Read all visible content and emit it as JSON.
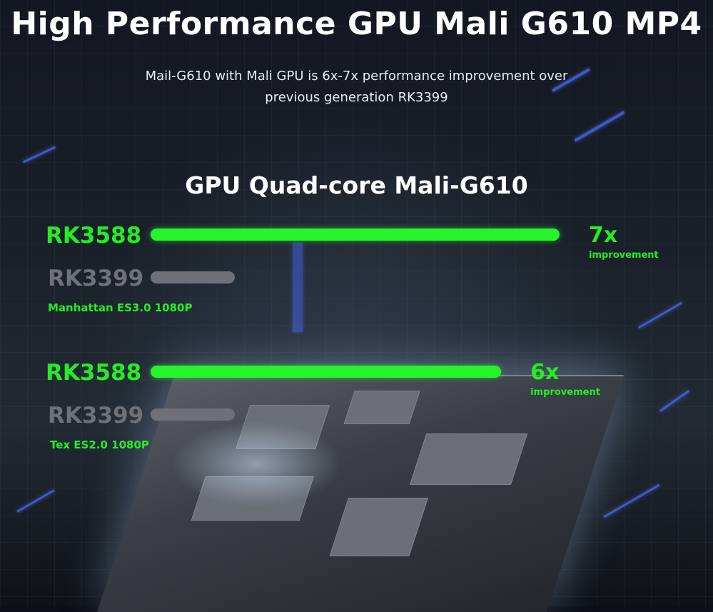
{
  "header": {
    "title": "High Performance GPU Mali G610 MP4",
    "subtitle_line1": "Mail-G610 with Mali GPU is 6x-7x performance improvement over",
    "subtitle_line2": "previous generation RK3399"
  },
  "chart_data": {
    "type": "bar",
    "title": "GPU Quad-core Mali-G610",
    "groups": [
      {
        "benchmark": "Manhattan ES3.0 1080P",
        "multiplier": "7x",
        "multiplier_note": "improvement",
        "bars": [
          {
            "name": "RK3588",
            "value": 7,
            "color": "#27f32d"
          },
          {
            "name": "RK3399",
            "value": 1,
            "color": "#6e7178"
          }
        ]
      },
      {
        "benchmark": "Tex ES2.0 1080P",
        "multiplier": "6x",
        "multiplier_note": "improvement",
        "bars": [
          {
            "name": "RK3588",
            "value": 6,
            "color": "#27f32d"
          },
          {
            "name": "RK3399",
            "value": 1,
            "color": "#6e7178"
          }
        ]
      }
    ],
    "xlabel": "",
    "ylabel": "",
    "legend": "none",
    "grid": false
  }
}
